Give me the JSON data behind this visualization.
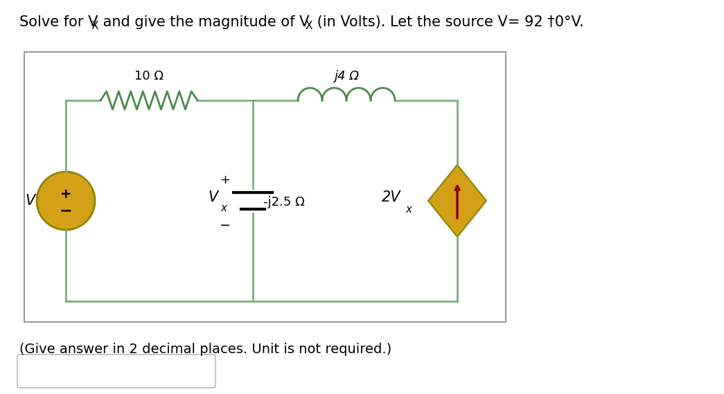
{
  "title_parts": [
    {
      "text": "Solve for V",
      "style": "normal"
    },
    {
      "text": "X",
      "style": "subscript"
    },
    {
      "text": " and give the magnitude of V",
      "style": "normal"
    },
    {
      "text": "X",
      "style": "subscript"
    },
    {
      "text": " (in Volts). Let the source V= 92 †0°V.",
      "style": "normal"
    }
  ],
  "subtitle": "(Give answer in 2 decimal places. Unit is not required.)",
  "bg_color": "#ffffff",
  "circuit_bg": "#ffffff",
  "circuit_border": "#aaaaaa",
  "resistor_10_label": "10 Ω",
  "resistor_j4_label": "j4 Ω",
  "resistor_j25_label": "-j2.5 Ω",
  "source_label": "V",
  "source_color": "#d4a017",
  "dep_source_color": "#d4a017",
  "dep_source_arrow_color": "#8b0000",
  "wire_color": "#5a7a5a",
  "resistor_color": "#4a8a4a",
  "inductor_color": "#4a8a4a"
}
